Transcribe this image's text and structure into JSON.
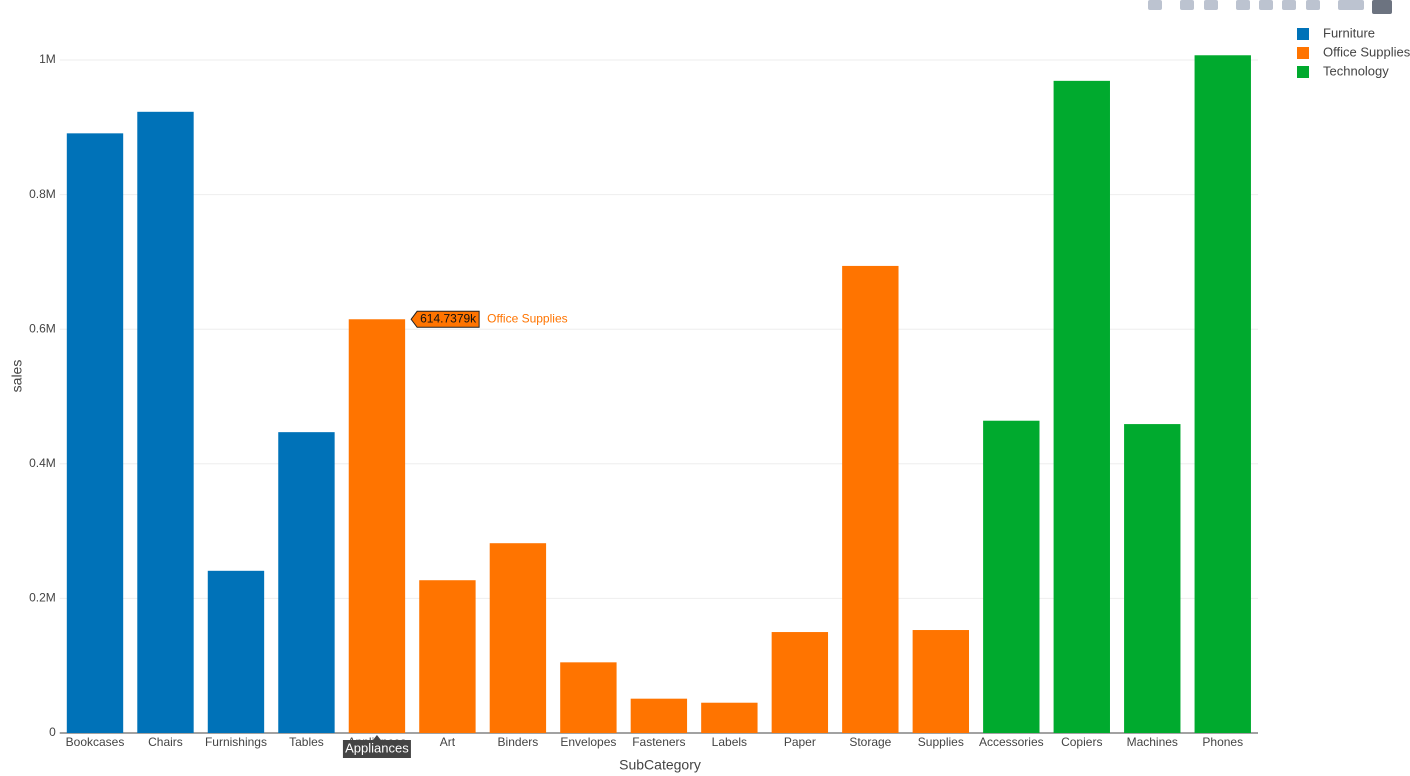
{
  "chart_data": {
    "type": "bar",
    "x_label": "SubCategory",
    "y_label": "sales",
    "categories": [
      "Bookcases",
      "Chairs",
      "Furnishings",
      "Tables",
      "Appliances",
      "Art",
      "Binders",
      "Envelopes",
      "Fasteners",
      "Labels",
      "Paper",
      "Storage",
      "Supplies",
      "Accessories",
      "Copiers",
      "Machines",
      "Phones"
    ],
    "series": [
      {
        "name": "Furniture",
        "color": "#0072b8",
        "values": [
          891000,
          923000,
          241000,
          447000,
          null,
          null,
          null,
          null,
          null,
          null,
          null,
          null,
          null,
          null,
          null,
          null,
          null
        ]
      },
      {
        "name": "Office Supplies",
        "color": "#ff7400",
        "values": [
          null,
          null,
          null,
          null,
          614737.9,
          227000,
          282000,
          105000,
          51000,
          45000,
          150000,
          694000,
          153000,
          null,
          null,
          null,
          null
        ],
        "value_labels": [
          null,
          null,
          null,
          null,
          "614.7379k",
          null,
          null,
          null,
          null,
          null,
          null,
          null,
          null,
          null,
          null,
          null,
          null
        ]
      },
      {
        "name": "Technology",
        "color": "#00aa2e",
        "values": [
          null,
          null,
          null,
          null,
          null,
          null,
          null,
          null,
          null,
          null,
          null,
          null,
          null,
          464000,
          969000,
          459000,
          1007000
        ]
      }
    ],
    "ylim": [
      0,
      1060000
    ],
    "yticks": [
      0,
      {
        "value": 200000,
        "label": "0.2M"
      },
      {
        "value": 400000,
        "label": "0.4M"
      },
      {
        "value": 600000,
        "label": "0.6M"
      },
      {
        "value": 800000,
        "label": "0.8M"
      },
      {
        "value": 1000000,
        "label": "1M"
      }
    ],
    "grid": true,
    "legend": "top-right",
    "hover_category": 4,
    "hover_series": 1
  }
}
